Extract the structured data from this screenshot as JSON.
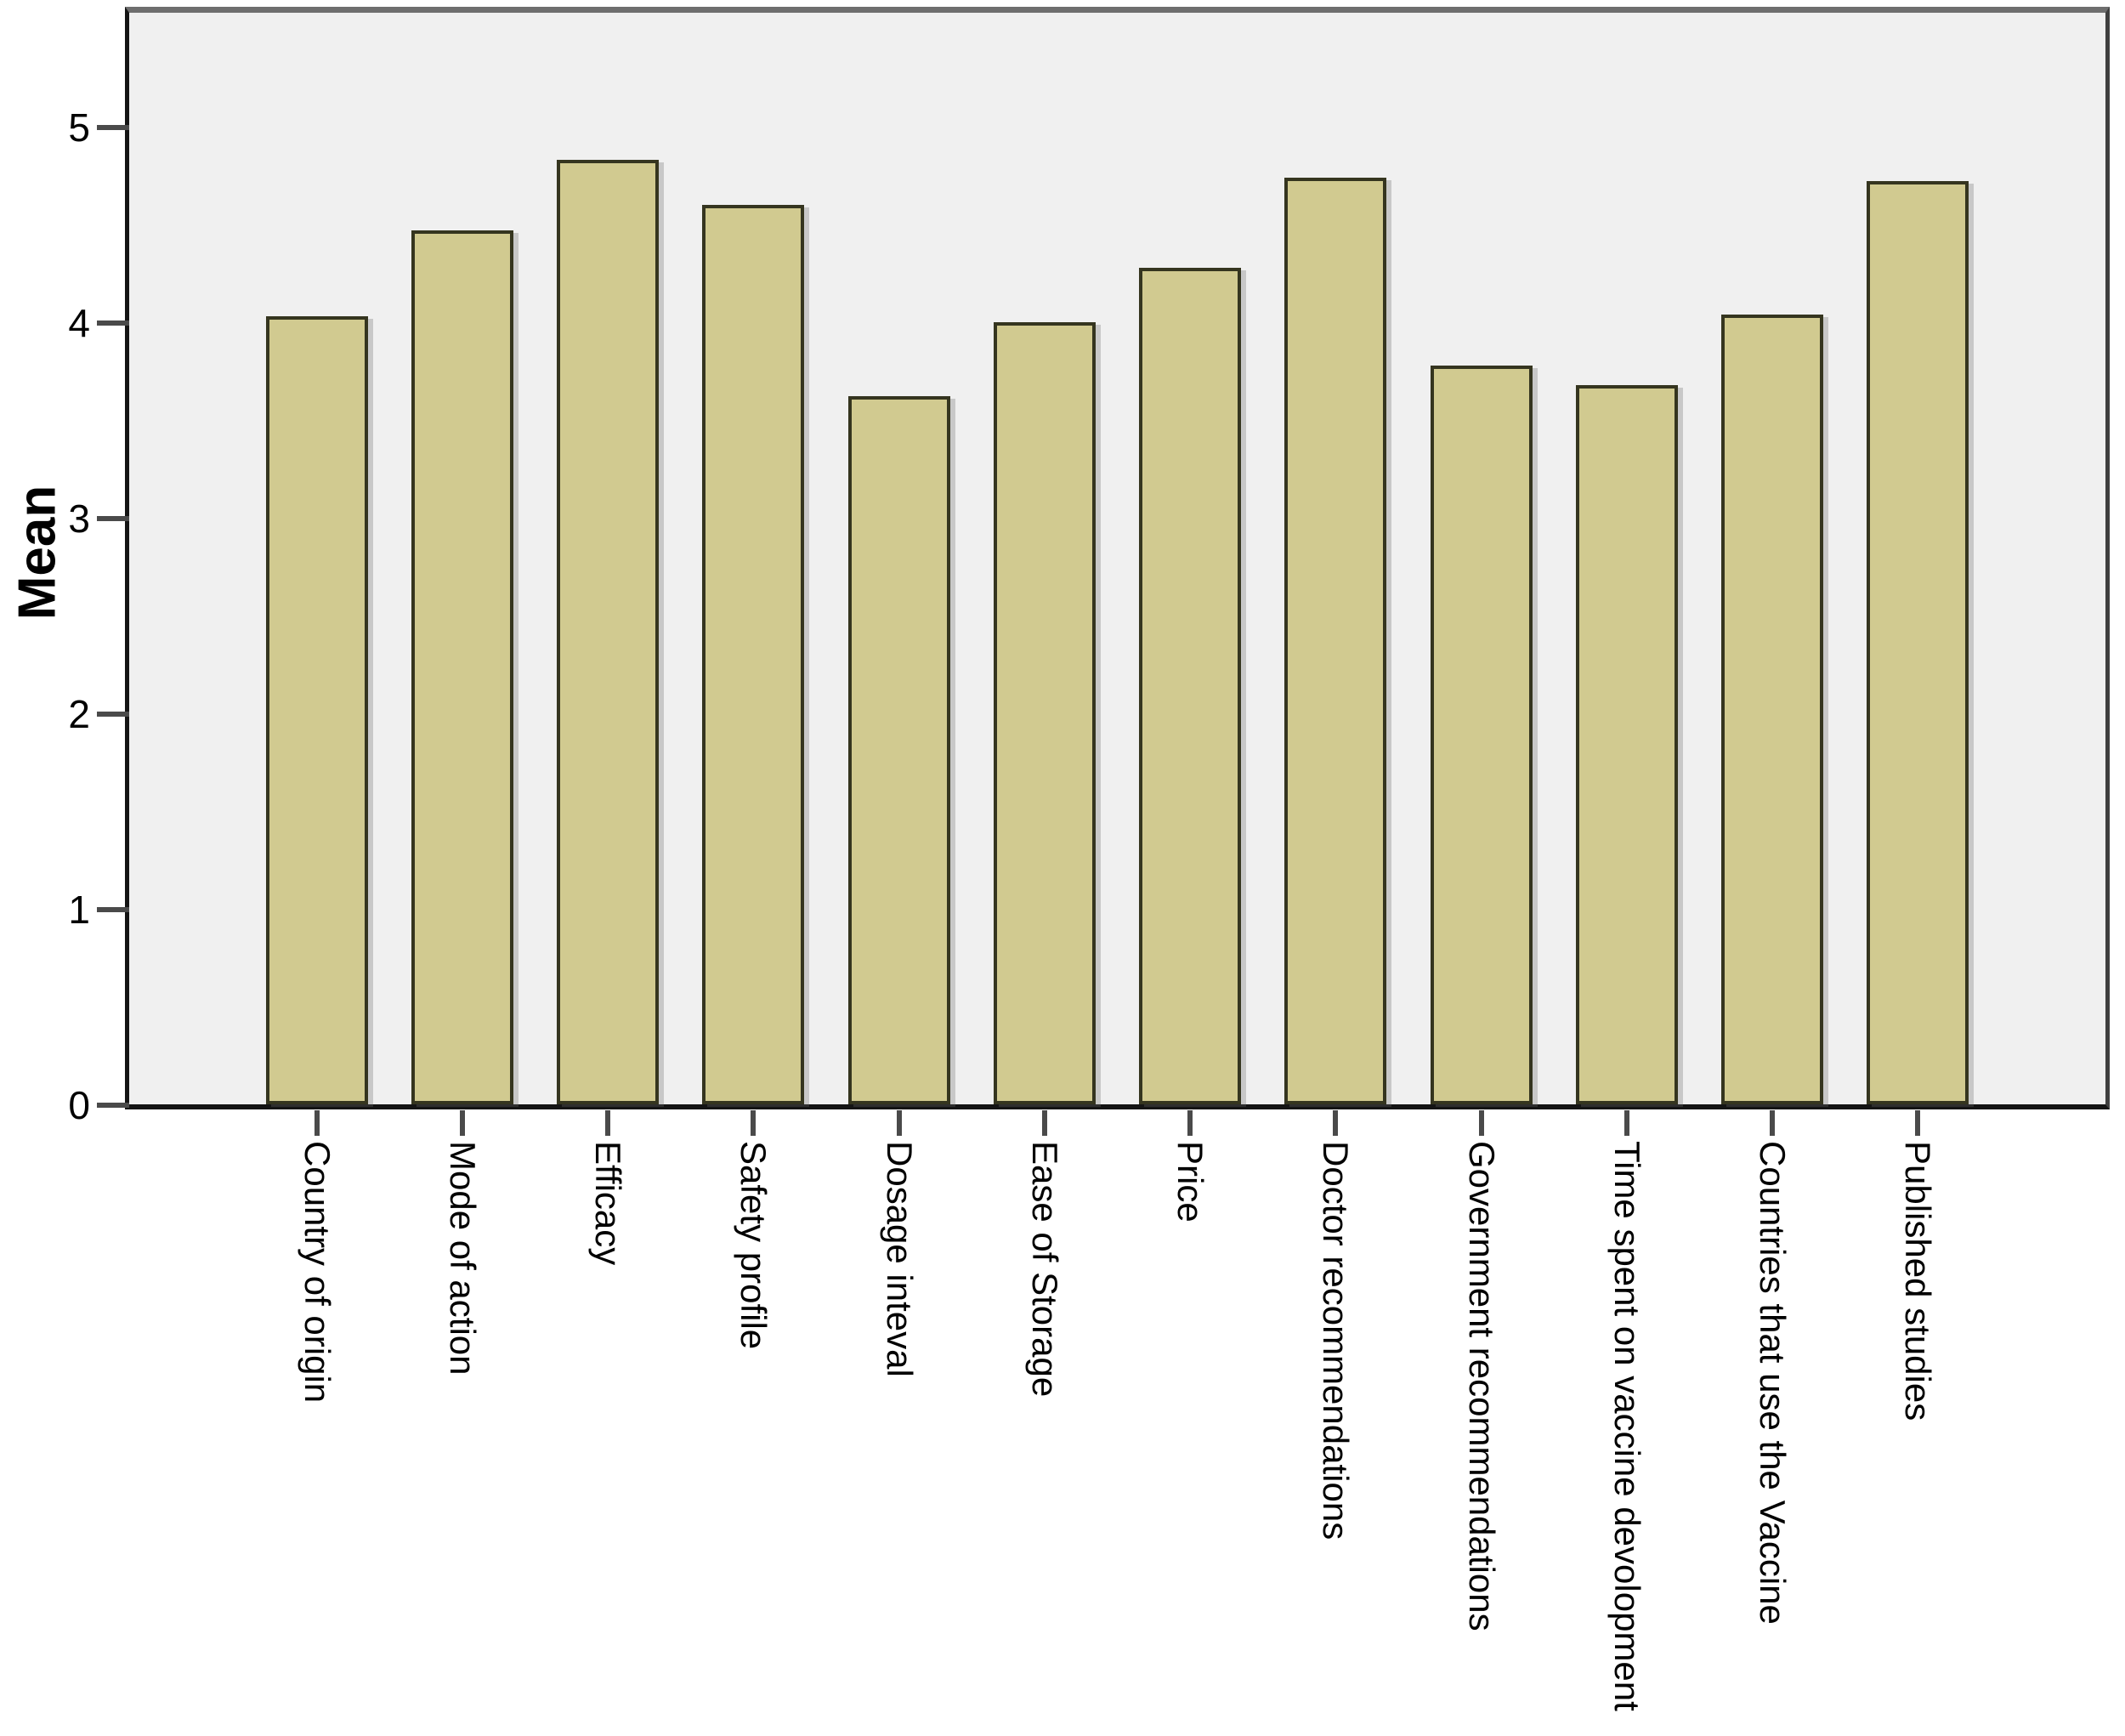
{
  "chart_data": {
    "type": "bar",
    "title": "",
    "xlabel": "",
    "ylabel": "Mean",
    "categories": [
      "Country of origin",
      "Mode of action",
      "Efficacy",
      "Safety profile",
      "Dosage inteval",
      "Ease of Storage",
      "Price",
      "Doctor recommendations",
      "Government recommendations",
      "Time spent on vaccine devolopment",
      "Countries that use the Vaccine",
      "Published studies"
    ],
    "values": [
      4.03,
      4.47,
      4.83,
      4.6,
      3.62,
      4.0,
      4.28,
      4.74,
      3.78,
      3.68,
      4.04,
      4.72
    ],
    "yticks": [
      0,
      1,
      2,
      3,
      4,
      5
    ],
    "ylim": [
      0,
      5.59
    ],
    "grid": false,
    "legend": null,
    "colors": {
      "bar_fill": "#d1ca90",
      "bar_border": "#35351f",
      "plot_background": "#f0f0f0",
      "page_background": "#ffffff",
      "axis_line": "#141414",
      "tick_mark": "#4a4a4a",
      "text": "#000000"
    }
  }
}
